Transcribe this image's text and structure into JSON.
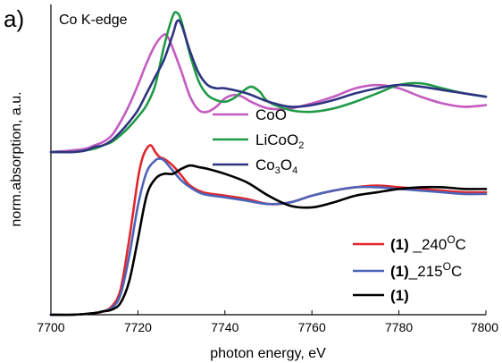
{
  "chart_data": {
    "type": "line",
    "panel_label": "a)",
    "title": "Co K-edge",
    "xlabel": "photon energy, eV",
    "ylabel": "norm.absorption, a.u.",
    "xlim": [
      7700,
      7800
    ],
    "xticks": [
      7700,
      7720,
      7740,
      7760,
      7780,
      7800
    ],
    "ylim": [
      -0.15,
      1.7
    ],
    "show_y_tick_labels": false,
    "legends": [
      {
        "position": "middle-center",
        "entries": [
          {
            "series": "CoO",
            "label": "CoO",
            "color": "#c45cc0"
          },
          {
            "series": "LiCoO2",
            "label_main": "LiCoO",
            "label_sub": "2",
            "color": "#1f9b47"
          },
          {
            "series": "Co3O4",
            "label_main1": "Co",
            "label_sub1": "3",
            "label_main2": "O",
            "label_sub2": "4",
            "color": "#2e3580"
          }
        ]
      },
      {
        "position": "bottom-right",
        "entries": [
          {
            "series": "240",
            "label_bold": "(1)",
            "label_rest": " _240",
            "label_sup": "O",
            "label_end": "C",
            "color": "#e0262c"
          },
          {
            "series": "215",
            "label_bold": "(1)",
            "label_rest": "_215",
            "label_sup": "O",
            "label_end": "C",
            "color": "#4d63b8"
          },
          {
            "series": "1",
            "label_bold": "(1)",
            "label_rest": "",
            "label_sup": "",
            "label_end": "",
            "color": "#000000"
          }
        ]
      }
    ],
    "series": [
      {
        "name": "CoO",
        "color": "#c45cc0",
        "x": [
          7700,
          7705,
          7708,
          7710,
          7712,
          7714,
          7716,
          7718,
          7720,
          7722,
          7724,
          7726,
          7727,
          7728,
          7730,
          7732,
          7734,
          7736,
          7738,
          7740,
          7742,
          7744,
          7746,
          7750,
          7755,
          7760,
          7765,
          7770,
          7775,
          7780,
          7785,
          7790,
          7795,
          7800
        ],
        "y": [
          0.82,
          0.83,
          0.84,
          0.86,
          0.88,
          0.92,
          1.0,
          1.1,
          1.22,
          1.35,
          1.46,
          1.52,
          1.5,
          1.44,
          1.3,
          1.15,
          1.07,
          1.06,
          1.09,
          1.14,
          1.16,
          1.15,
          1.12,
          1.08,
          1.08,
          1.11,
          1.15,
          1.2,
          1.22,
          1.2,
          1.15,
          1.11,
          1.09,
          1.1
        ]
      },
      {
        "name": "LiCoO2",
        "color": "#1f9b47",
        "x": [
          7700,
          7705,
          7708,
          7710,
          7712,
          7714,
          7716,
          7718,
          7720,
          7722,
          7724,
          7726,
          7728,
          7729,
          7730,
          7732,
          7734,
          7736,
          7738,
          7740,
          7742,
          7744,
          7746,
          7748,
          7750,
          7755,
          7760,
          7765,
          7770,
          7775,
          7780,
          7785,
          7790,
          7795,
          7800
        ],
        "y": [
          0.82,
          0.82,
          0.83,
          0.84,
          0.86,
          0.88,
          0.92,
          0.97,
          1.03,
          1.1,
          1.22,
          1.45,
          1.63,
          1.65,
          1.6,
          1.4,
          1.24,
          1.16,
          1.13,
          1.12,
          1.14,
          1.18,
          1.21,
          1.18,
          1.12,
          1.07,
          1.06,
          1.08,
          1.12,
          1.17,
          1.22,
          1.23,
          1.2,
          1.17,
          1.15
        ]
      },
      {
        "name": "Co3O4",
        "color": "#2e3580",
        "x": [
          7700,
          7705,
          7708,
          7710,
          7712,
          7714,
          7716,
          7718,
          7720,
          7722,
          7724,
          7726,
          7728,
          7729,
          7730,
          7732,
          7734,
          7736,
          7738,
          7740,
          7745,
          7750,
          7755,
          7760,
          7765,
          7770,
          7775,
          7780,
          7785,
          7790,
          7795,
          7800
        ],
        "y": [
          0.82,
          0.82,
          0.83,
          0.85,
          0.86,
          0.89,
          0.94,
          1.0,
          1.07,
          1.17,
          1.27,
          1.37,
          1.52,
          1.6,
          1.58,
          1.42,
          1.29,
          1.22,
          1.2,
          1.2,
          1.17,
          1.12,
          1.09,
          1.1,
          1.13,
          1.17,
          1.2,
          1.22,
          1.21,
          1.19,
          1.17,
          1.15
        ]
      },
      {
        "name": "240",
        "color": "#e0262c",
        "x": [
          7700,
          7705,
          7710,
          7712,
          7714,
          7716,
          7718,
          7720,
          7721,
          7722,
          7723,
          7724,
          7725,
          7726,
          7728,
          7730,
          7732,
          7735,
          7740,
          7745,
          7750,
          7755,
          7760,
          7765,
          7770,
          7775,
          7780,
          7785,
          7790,
          7795,
          7800
        ],
        "y": [
          -0.15,
          -0.15,
          -0.14,
          -0.13,
          -0.1,
          0.0,
          0.3,
          0.66,
          0.78,
          0.84,
          0.86,
          0.82,
          0.79,
          0.78,
          0.74,
          0.68,
          0.62,
          0.58,
          0.56,
          0.54,
          0.51,
          0.52,
          0.56,
          0.59,
          0.61,
          0.62,
          0.61,
          0.6,
          0.59,
          0.58,
          0.58
        ]
      },
      {
        "name": "215",
        "color": "#4d63b8",
        "x": [
          7700,
          7705,
          7710,
          7712,
          7714,
          7716,
          7718,
          7720,
          7722,
          7724,
          7725,
          7726,
          7728,
          7730,
          7732,
          7735,
          7740,
          7745,
          7750,
          7755,
          7760,
          7765,
          7770,
          7775,
          7780,
          7785,
          7790,
          7795,
          7800
        ],
        "y": [
          -0.15,
          -0.15,
          -0.14,
          -0.13,
          -0.11,
          -0.03,
          0.2,
          0.5,
          0.7,
          0.77,
          0.78,
          0.77,
          0.71,
          0.65,
          0.61,
          0.57,
          0.55,
          0.53,
          0.51,
          0.52,
          0.56,
          0.59,
          0.61,
          0.61,
          0.6,
          0.59,
          0.58,
          0.57,
          0.57
        ]
      },
      {
        "name": "1",
        "color": "#000000",
        "x": [
          7700,
          7705,
          7710,
          7712,
          7714,
          7716,
          7718,
          7720,
          7722,
          7724,
          7726,
          7728,
          7730,
          7732,
          7734,
          7736,
          7740,
          7745,
          7750,
          7755,
          7760,
          7765,
          7770,
          7775,
          7780,
          7785,
          7790,
          7795,
          7800
        ],
        "y": [
          -0.15,
          -0.15,
          -0.14,
          -0.13,
          -0.12,
          -0.08,
          0.05,
          0.3,
          0.56,
          0.66,
          0.69,
          0.69,
          0.72,
          0.74,
          0.73,
          0.72,
          0.69,
          0.64,
          0.56,
          0.5,
          0.49,
          0.52,
          0.56,
          0.58,
          0.6,
          0.61,
          0.61,
          0.6,
          0.6
        ]
      }
    ]
  }
}
